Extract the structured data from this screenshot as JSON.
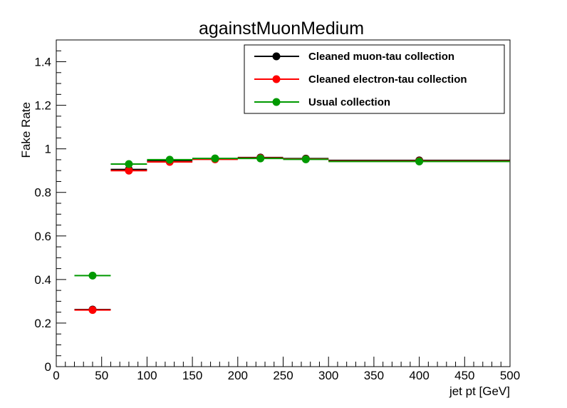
{
  "chart_data": {
    "type": "scatter",
    "title": "againstMuonMedium",
    "xlabel": "jet pt [GeV]",
    "ylabel": "Fake Rate",
    "xlim": [
      0,
      500
    ],
    "ylim": [
      0,
      1.5
    ],
    "x_ticks": [
      "0",
      "50",
      "100",
      "150",
      "200",
      "250",
      "300",
      "350",
      "400",
      "450",
      "500"
    ],
    "y_ticks": [
      "0",
      "0.2",
      "0.4",
      "0.6",
      "0.8",
      "1",
      "1.2",
      "1.4"
    ],
    "grid": false,
    "legend_position": "top-right",
    "bins": [
      [
        20,
        60
      ],
      [
        60,
        100
      ],
      [
        100,
        150
      ],
      [
        150,
        200
      ],
      [
        200,
        250
      ],
      [
        250,
        300
      ],
      [
        300,
        500
      ]
    ],
    "series": [
      {
        "name": "Cleaned muon-tau collection",
        "color": "#000000",
        "x": [
          40,
          80,
          125,
          175,
          225,
          275,
          400
        ],
        "values": [
          0.262,
          0.905,
          0.945,
          0.955,
          0.96,
          0.955,
          0.947
        ]
      },
      {
        "name": "Cleaned electron-tau collection",
        "color": "#ff0000",
        "x": [
          40,
          80,
          125,
          175,
          225,
          275,
          400
        ],
        "values": [
          0.26,
          0.9,
          0.94,
          0.952,
          0.958,
          0.953,
          0.944
        ]
      },
      {
        "name": "Usual collection",
        "color": "#009900",
        "x": [
          40,
          80,
          125,
          175,
          225,
          275,
          400
        ],
        "values": [
          0.418,
          0.93,
          0.95,
          0.956,
          0.956,
          0.952,
          0.942
        ]
      }
    ]
  }
}
